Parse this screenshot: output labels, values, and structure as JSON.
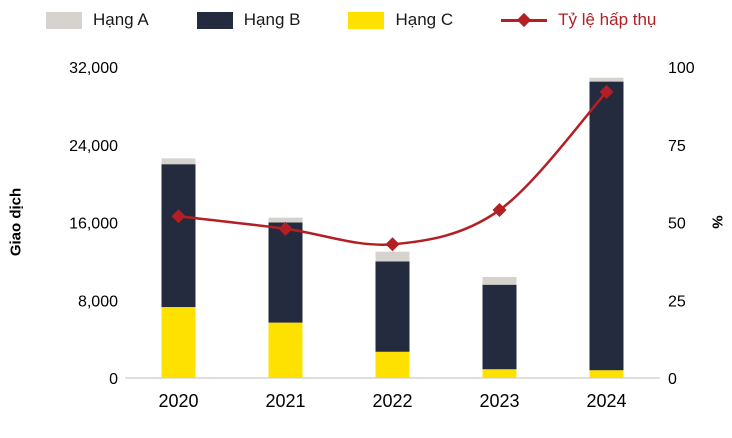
{
  "chart_data": {
    "type": "bar+line",
    "title": "",
    "categories": [
      "2020",
      "2021",
      "2022",
      "2023",
      "2024"
    ],
    "bar_series": [
      {
        "name": "Hạng A",
        "key": "hang-a",
        "color": "#d6d3ce",
        "values": [
          600,
          500,
          1000,
          800,
          400
        ]
      },
      {
        "name": "Hạng B",
        "key": "hang-b",
        "color": "#252b3f",
        "values": [
          14700,
          10300,
          9300,
          8700,
          29700
        ]
      },
      {
        "name": "Hạng C",
        "key": "hang-c",
        "color": "#ffe100",
        "values": [
          7300,
          5700,
          2700,
          900,
          800
        ]
      }
    ],
    "stack_order_bottom_to_top": [
      "Hạng C",
      "Hạng B",
      "Hạng A"
    ],
    "line_series": {
      "name": "Tỷ lệ hấp thụ",
      "key": "ty-le-hap-thu",
      "color": "#b21f24",
      "axis": "right",
      "values": [
        52,
        48,
        43,
        54,
        92
      ]
    },
    "ylabel": "Giao dịch",
    "y2label": "%",
    "ylim": [
      0,
      32000
    ],
    "y2lim": [
      0,
      100
    ],
    "yticks": {
      "values": [
        0,
        8000,
        16000,
        24000,
        32000
      ],
      "labels": [
        "0",
        "8,000",
        "16,000",
        "24,000",
        "32,000"
      ]
    },
    "y2ticks": {
      "values": [
        0,
        25,
        50,
        75,
        100
      ],
      "labels": [
        "0",
        "25",
        "50",
        "75",
        "100"
      ]
    },
    "legend_position": "top",
    "grid": false
  }
}
